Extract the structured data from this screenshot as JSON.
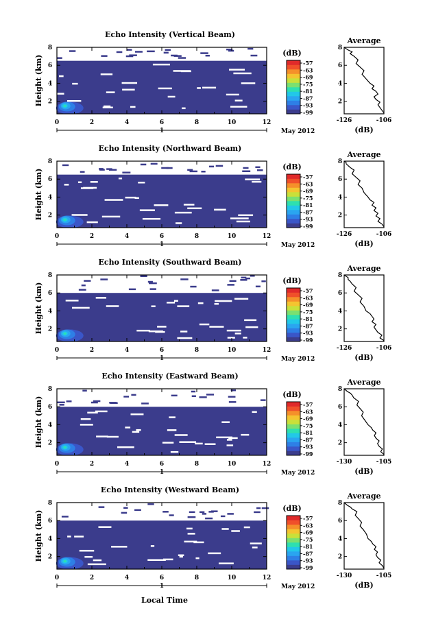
{
  "figure": {
    "xlabel": "Local Time",
    "date_label_suffix": "May 2012"
  },
  "palette": [
    "#3b3c8c",
    "#3a56c8",
    "#2e7fe6",
    "#2aa5f0",
    "#22c8e8",
    "#2ee0b0",
    "#7be070",
    "#c9e03a",
    "#f4c430",
    "#f5902a",
    "#f0502a",
    "#e02a2a"
  ],
  "chart_data": [
    {
      "type": "heatmap",
      "title": "Echo Intensity (Vertical Beam)",
      "ylabel": "Height (km)",
      "xticks": [
        "0",
        "2",
        "4",
        "6",
        "8",
        "10",
        "12"
      ],
      "yticks": [
        "2",
        "4",
        "6",
        "8"
      ],
      "xlim": [
        0,
        12
      ],
      "ylim": [
        0.6,
        8
      ],
      "date_tick": "1",
      "colorbar": {
        "unit": "(dB)",
        "labels": [
          "-57",
          "-63",
          "-69",
          "-75",
          "-81",
          "-87",
          "-93",
          "-99"
        ]
      },
      "profile": {
        "title": "Average",
        "xticks": [
          "-126",
          "-106"
        ],
        "xlabel": "(dB)",
        "xlim": [
          -126,
          -106
        ],
        "ylim": [
          0.6,
          8
        ],
        "yticks": [
          "2",
          "4",
          "6",
          "8"
        ],
        "x": [
          -106,
          -107,
          -108,
          -109,
          -108,
          -110,
          -111,
          -109,
          -110,
          -112,
          -111,
          -113,
          -115,
          -117,
          -116,
          -118,
          -120,
          -119,
          -121,
          -123,
          -122,
          -124,
          -125,
          -126
        ],
        "y": [
          0.7,
          1.0,
          1.3,
          1.6,
          1.9,
          2.2,
          2.5,
          2.8,
          3.1,
          3.4,
          3.7,
          4.0,
          4.5,
          5.0,
          5.4,
          5.8,
          6.2,
          6.6,
          7.0,
          7.3,
          7.5,
          7.7,
          7.85,
          8.0
        ]
      }
    },
    {
      "type": "heatmap",
      "title": "Echo Intensity (Northward Beam)",
      "ylabel": "Height (km)",
      "xticks": [
        "0",
        "2",
        "4",
        "6",
        "8",
        "10",
        "12"
      ],
      "yticks": [
        "2",
        "4",
        "6",
        "8"
      ],
      "xlim": [
        0,
        12
      ],
      "ylim": [
        0.6,
        8
      ],
      "date_tick": "1",
      "colorbar": {
        "unit": "(dB)",
        "labels": [
          "-57",
          "-63",
          "-69",
          "-75",
          "-81",
          "-87",
          "-93",
          "-99"
        ]
      },
      "profile": {
        "title": "Average",
        "xticks": [
          "-126",
          "-106"
        ],
        "xlabel": "(dB)",
        "xlim": [
          -126,
          -106
        ],
        "ylim": [
          0.6,
          8
        ],
        "yticks": [
          "2",
          "4",
          "6",
          "8"
        ],
        "x": [
          -106,
          -107,
          -109,
          -108,
          -110,
          -109,
          -111,
          -110,
          -112,
          -111,
          -113,
          -114,
          -116,
          -117,
          -119,
          -118,
          -120,
          -122,
          -121,
          -123,
          -124,
          -125,
          -125,
          -126
        ],
        "y": [
          0.7,
          1.0,
          1.3,
          1.6,
          1.9,
          2.2,
          2.5,
          2.8,
          3.1,
          3.4,
          3.7,
          4.0,
          4.5,
          5.0,
          5.4,
          5.8,
          6.2,
          6.6,
          7.0,
          7.3,
          7.5,
          7.7,
          7.85,
          8.0
        ]
      }
    },
    {
      "type": "heatmap",
      "title": "Echo Intensity (Southward Beam)",
      "ylabel": "Height (km)",
      "xticks": [
        "0",
        "2",
        "4",
        "6",
        "8",
        "10",
        "12"
      ],
      "yticks": [
        "2",
        "4",
        "6",
        "8"
      ],
      "xlim": [
        0,
        12
      ],
      "ylim": [
        0.6,
        8
      ],
      "date_tick": "1",
      "colorbar": {
        "unit": "(dB)",
        "labels": [
          "-57",
          "-63",
          "-69",
          "-75",
          "-81",
          "-87",
          "-93",
          "-99"
        ]
      },
      "profile": {
        "title": "Average",
        "xticks": [
          "-126",
          "-106"
        ],
        "xlabel": "(dB)",
        "xlim": [
          -126,
          -106
        ],
        "ylim": [
          0.6,
          8
        ],
        "yticks": [
          "2",
          "4",
          "6",
          "8"
        ],
        "x": [
          -106,
          -108,
          -107,
          -109,
          -110,
          -111,
          -110,
          -112,
          -111,
          -112,
          -113,
          -115,
          -116,
          -118,
          -117,
          -119,
          -121,
          -120,
          -122,
          -123,
          -124,
          -124,
          -125,
          -126
        ],
        "y": [
          0.7,
          1.0,
          1.3,
          1.6,
          1.9,
          2.2,
          2.5,
          2.8,
          3.1,
          3.4,
          3.7,
          4.0,
          4.5,
          5.0,
          5.4,
          5.8,
          6.2,
          6.6,
          7.0,
          7.3,
          7.5,
          7.7,
          7.85,
          8.0
        ]
      }
    },
    {
      "type": "heatmap",
      "title": "Echo Intensity (Eastward Beam)",
      "ylabel": "Height (km)",
      "xticks": [
        "0",
        "2",
        "4",
        "6",
        "8",
        "10",
        "12"
      ],
      "yticks": [
        "2",
        "4",
        "6",
        "8"
      ],
      "xlim": [
        0,
        12
      ],
      "ylim": [
        0.6,
        8
      ],
      "date_tick": "1",
      "colorbar": {
        "unit": "(dB)",
        "labels": [
          "-57",
          "-63",
          "-69",
          "-75",
          "-81",
          "-87",
          "-93",
          "-99"
        ]
      },
      "profile": {
        "title": "Average",
        "xticks": [
          "-130",
          "-105"
        ],
        "xlabel": "(dB)",
        "xlim": [
          -130,
          -105
        ],
        "ylim": [
          0.6,
          8
        ],
        "yticks": [
          "2",
          "4",
          "6",
          "8"
        ],
        "x": [
          -105,
          -107,
          -106,
          -108,
          -109,
          -108,
          -110,
          -111,
          -110,
          -112,
          -113,
          -115,
          -117,
          -119,
          -118,
          -120,
          -122,
          -121,
          -124,
          -125,
          -126,
          -128,
          -129,
          -130
        ],
        "y": [
          0.7,
          1.0,
          1.3,
          1.6,
          1.9,
          2.2,
          2.5,
          2.8,
          3.1,
          3.4,
          3.7,
          4.0,
          4.5,
          5.0,
          5.4,
          5.8,
          6.2,
          6.6,
          7.0,
          7.3,
          7.5,
          7.7,
          7.85,
          8.0
        ]
      }
    },
    {
      "type": "heatmap",
      "title": "Echo Intensity (Westward Beam)",
      "ylabel": "Height (km)",
      "xticks": [
        "0",
        "2",
        "4",
        "6",
        "8",
        "10",
        "12"
      ],
      "yticks": [
        "2",
        "4",
        "6",
        "8"
      ],
      "xlim": [
        0,
        12
      ],
      "ylim": [
        0.6,
        8
      ],
      "date_tick": "1",
      "colorbar": {
        "unit": "(dB)",
        "labels": [
          "-57",
          "-63",
          "-69",
          "-75",
          "-81",
          "-87",
          "-93",
          "-99"
        ]
      },
      "profile": {
        "title": "Average",
        "xticks": [
          "-130",
          "-105"
        ],
        "xlabel": "(dB)",
        "xlim": [
          -130,
          -105
        ],
        "ylim": [
          0.6,
          8
        ],
        "yticks": [
          "2",
          "4",
          "6",
          "8"
        ],
        "x": [
          -105,
          -106,
          -108,
          -107,
          -109,
          -110,
          -109,
          -111,
          -110,
          -112,
          -113,
          -115,
          -116,
          -118,
          -120,
          -119,
          -121,
          -123,
          -122,
          -125,
          -126,
          -128,
          -129,
          -130
        ],
        "y": [
          0.7,
          1.0,
          1.3,
          1.6,
          1.9,
          2.2,
          2.5,
          2.8,
          3.1,
          3.4,
          3.7,
          4.0,
          4.5,
          5.0,
          5.4,
          5.8,
          6.2,
          6.6,
          7.0,
          7.3,
          7.5,
          7.7,
          7.85,
          8.0
        ]
      }
    }
  ]
}
